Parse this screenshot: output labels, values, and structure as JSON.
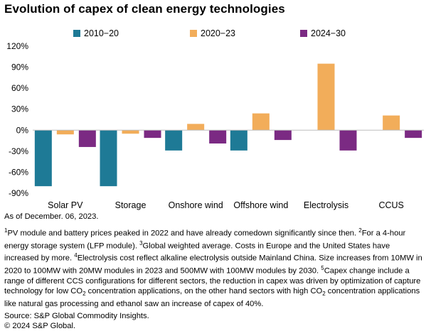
{
  "title": "Evolution of capex of clean energy technologies",
  "chart_data": {
    "type": "bar",
    "categories": [
      "Solar PV",
      "Storage",
      "Onshore wind",
      "Offshore wind",
      "Electrolysis",
      "CCUS"
    ],
    "series": [
      {
        "name": "2010−20",
        "color": "#1e7a96",
        "values": [
          -80,
          -80,
          -29,
          -29,
          null,
          null
        ]
      },
      {
        "name": "2020−23",
        "color": "#f2ad5a",
        "values": [
          -6,
          -5,
          9,
          24,
          95,
          21
        ]
      },
      {
        "name": "2024−30",
        "color": "#7b2a83",
        "values": [
          -24,
          -11,
          -19,
          -14,
          -29,
          -11
        ]
      }
    ],
    "ylim": [
      -90,
      120
    ],
    "yticks": [
      -90,
      -60,
      -30,
      0,
      30,
      60,
      90,
      120
    ],
    "ytick_labels": [
      "-90%",
      "-60%",
      "-30%",
      "0%",
      "30%",
      "60%",
      "90%",
      "120%"
    ],
    "grid": false,
    "legend_position": "top"
  },
  "notes": {
    "as_of": "As of December. 06, 2023.",
    "footnote_parts": [
      {
        "t": "sup",
        "v": "1"
      },
      {
        "t": "text",
        "v": "PV module and battery prices peaked in 2022 and have already comedown significantly since then. "
      },
      {
        "t": "sup",
        "v": "2"
      },
      {
        "t": "text",
        "v": "For a 4-hour energy storage system (LFP module). "
      },
      {
        "t": "sup",
        "v": "3"
      },
      {
        "t": "text",
        "v": "Global weighted average. Costs in Europe and the United States have increased by more. "
      },
      {
        "t": "sup",
        "v": "4"
      },
      {
        "t": "text",
        "v": "Electrolysis cost reflect alkaline electrolysis outside Mainland China. Size increases from 10MW in 2020 to 100MW with 20MW modules in 2023 and 500MW with 100MW modules by 2030. "
      },
      {
        "t": "sup",
        "v": "5"
      },
      {
        "t": "text",
        "v": "Capex change include a range of different CCS configurations for different sectors, the reduction in capex was driven by optimization of capture technology for low CO"
      },
      {
        "t": "sub",
        "v": "2"
      },
      {
        "t": "text",
        "v": " concentration applications, on the other hand sectors with high CO"
      },
      {
        "t": "sub",
        "v": "2"
      },
      {
        "t": "text",
        "v": " concentration applications like natural gas processing and ethanol saw an increase of capex of 40%."
      }
    ],
    "source": "Source: S&P Global Commodity Insights.",
    "copyright": "© 2024 S&P Global."
  }
}
